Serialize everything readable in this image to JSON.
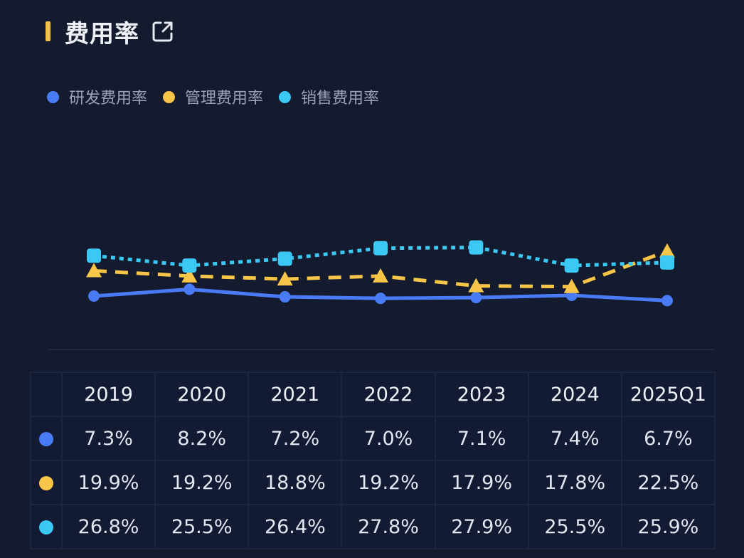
{
  "header": {
    "title": "费用率",
    "external_link_icon": "external-link-icon",
    "accent_color": "#f2c24e"
  },
  "legend": [
    {
      "label": "研发费用率",
      "color": "#4a7bf7"
    },
    {
      "label": "管理费用率",
      "color": "#f7c548"
    },
    {
      "label": "销售费用率",
      "color": "#3cc8f5"
    }
  ],
  "chart_data": {
    "type": "line",
    "title": "费用率",
    "xlabel": "",
    "ylabel": "",
    "categories": [
      "2019",
      "2020",
      "2021",
      "2022",
      "2023",
      "2024",
      "2025Q1"
    ],
    "series": [
      {
        "name": "研发费用率",
        "color": "#4a7bf7",
        "line_style": "solid",
        "marker": "circle",
        "values": [
          7.3,
          8.2,
          7.2,
          7.0,
          7.1,
          7.4,
          6.7
        ]
      },
      {
        "name": "管理费用率",
        "color": "#f7c548",
        "line_style": "dashed",
        "marker": "triangle",
        "values": [
          19.9,
          19.2,
          18.8,
          19.2,
          17.9,
          17.8,
          22.5
        ]
      },
      {
        "name": "销售费用率",
        "color": "#3cc8f5",
        "line_style": "dotted",
        "marker": "square",
        "values": [
          26.8,
          25.5,
          26.4,
          27.8,
          27.9,
          25.5,
          25.9
        ]
      }
    ],
    "unit": "%",
    "grid": false,
    "legend_position": "top-left",
    "axes_visible": false
  },
  "table": {
    "columns": [
      "2019",
      "2020",
      "2021",
      "2022",
      "2023",
      "2024",
      "2025Q1"
    ],
    "rows": [
      {
        "color": "#4a7bf7",
        "cells": [
          "7.3%",
          "8.2%",
          "7.2%",
          "7.0%",
          "7.1%",
          "7.4%",
          "6.7%"
        ]
      },
      {
        "color": "#f7c548",
        "cells": [
          "19.9%",
          "19.2%",
          "18.8%",
          "19.2%",
          "17.9%",
          "17.8%",
          "22.5%"
        ]
      },
      {
        "color": "#3cc8f5",
        "cells": [
          "26.8%",
          "25.5%",
          "26.4%",
          "27.8%",
          "27.9%",
          "25.5%",
          "25.9%"
        ]
      }
    ]
  }
}
